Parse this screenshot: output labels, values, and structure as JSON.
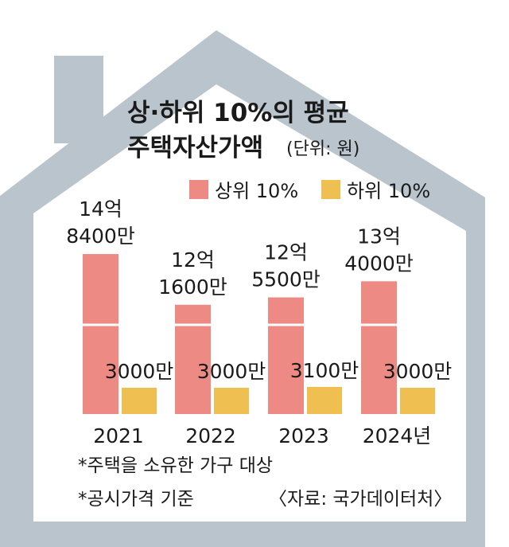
{
  "title_line1": "상·하위 10%의 평균",
  "title_line2": "주택자산가액",
  "unit": "(단위: 원)",
  "colors": {
    "top": "#ee8a84",
    "bottom": "#f0bf52",
    "house": "#b9c4cd"
  },
  "legend": {
    "top": "상위 10%",
    "bottom": "하위 10%"
  },
  "notes": {
    "note1": "*주택을 소유한 가구 대상",
    "note2": "*공시가격 기준",
    "source": "〈자료: 국가데이터처〉"
  },
  "chart_data": {
    "type": "bar",
    "categories": [
      "2021",
      "2022",
      "2023",
      "2024년"
    ],
    "unit": "원",
    "series": [
      {
        "name": "상위 10%",
        "values": [
          1484000000,
          1216000000,
          1255000000,
          1340000000
        ],
        "labels": [
          [
            "14억",
            "8400만"
          ],
          [
            "12억",
            "1600만"
          ],
          [
            "12억",
            "5500만"
          ],
          [
            "13억",
            "4000만"
          ]
        ]
      },
      {
        "name": "하위 10%",
        "values": [
          30000000,
          30000000,
          31000000,
          30000000
        ],
        "labels": [
          "3000만",
          "3000만",
          "3100만",
          "3000만"
        ]
      }
    ],
    "axis_break": true,
    "grid": false,
    "legend_position": "top-right"
  }
}
